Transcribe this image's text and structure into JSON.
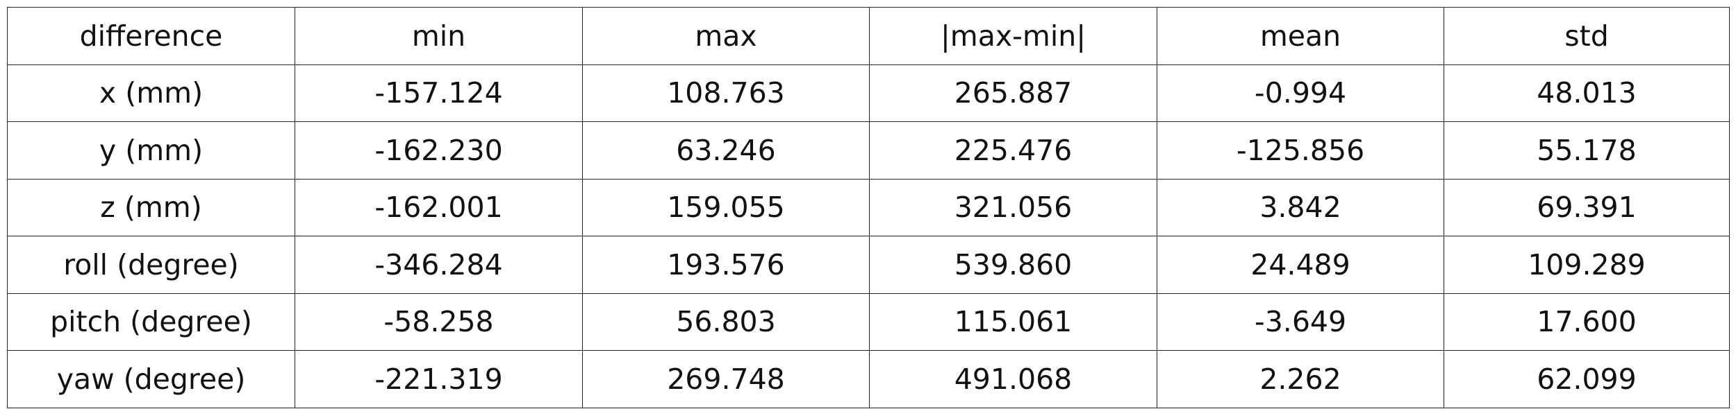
{
  "chart_data": {
    "type": "table",
    "columns": [
      "difference",
      "min",
      "max",
      "|max-min|",
      "mean",
      "std"
    ],
    "rows": [
      [
        "x (mm)",
        "-157.124",
        "108.763",
        "265.887",
        "-0.994",
        "48.013"
      ],
      [
        "y (mm)",
        "-162.230",
        "63.246",
        "225.476",
        "-125.856",
        "55.178"
      ],
      [
        "z (mm)",
        "-162.001",
        "159.055",
        "321.056",
        "3.842",
        "69.391"
      ],
      [
        "roll (degree)",
        "-346.284",
        "193.576",
        "539.860",
        "24.489",
        "109.289"
      ],
      [
        "pitch (degree)",
        "-58.258",
        "56.803",
        "115.061",
        "-3.649",
        "17.600"
      ],
      [
        "yaw (degree)",
        "-221.319",
        "269.748",
        "491.068",
        "2.262",
        "62.099"
      ]
    ]
  }
}
